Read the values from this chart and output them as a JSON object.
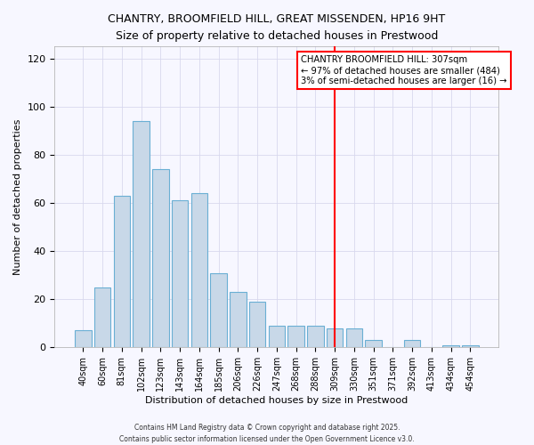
{
  "title": "CHANTRY, BROOMFIELD HILL, GREAT MISSENDEN, HP16 9HT",
  "subtitle": "Size of property relative to detached houses in Prestwood",
  "xlabel": "Distribution of detached houses by size in Prestwood",
  "ylabel": "Number of detached properties",
  "bar_labels": [
    "40sqm",
    "60sqm",
    "81sqm",
    "102sqm",
    "123sqm",
    "143sqm",
    "164sqm",
    "185sqm",
    "206sqm",
    "226sqm",
    "247sqm",
    "268sqm",
    "288sqm",
    "309sqm",
    "330sqm",
    "351sqm",
    "371sqm",
    "392sqm",
    "413sqm",
    "434sqm",
    "454sqm"
  ],
  "bar_values": [
    7,
    25,
    63,
    94,
    74,
    61,
    64,
    31,
    23,
    19,
    9,
    9,
    9,
    8,
    8,
    3,
    0,
    3,
    0,
    1,
    1
  ],
  "bar_color": "#c8d8e8",
  "bar_edge_color": "#6aafd4",
  "ylim": [
    0,
    125
  ],
  "yticks": [
    0,
    20,
    40,
    60,
    80,
    100,
    120
  ],
  "vline_index": 13,
  "vline_color": "red",
  "annotation_title": "CHANTRY BROOMFIELD HILL: 307sqm",
  "annotation_line2": "← 97% of detached houses are smaller (484)",
  "annotation_line3": "3% of semi-detached houses are larger (16) →",
  "footer1": "Contains HM Land Registry data © Crown copyright and database right 2025.",
  "footer2": "Contains public sector information licensed under the Open Government Licence v3.0.",
  "bg_color": "#f7f7ff",
  "grid_color": "#d8d8ee"
}
